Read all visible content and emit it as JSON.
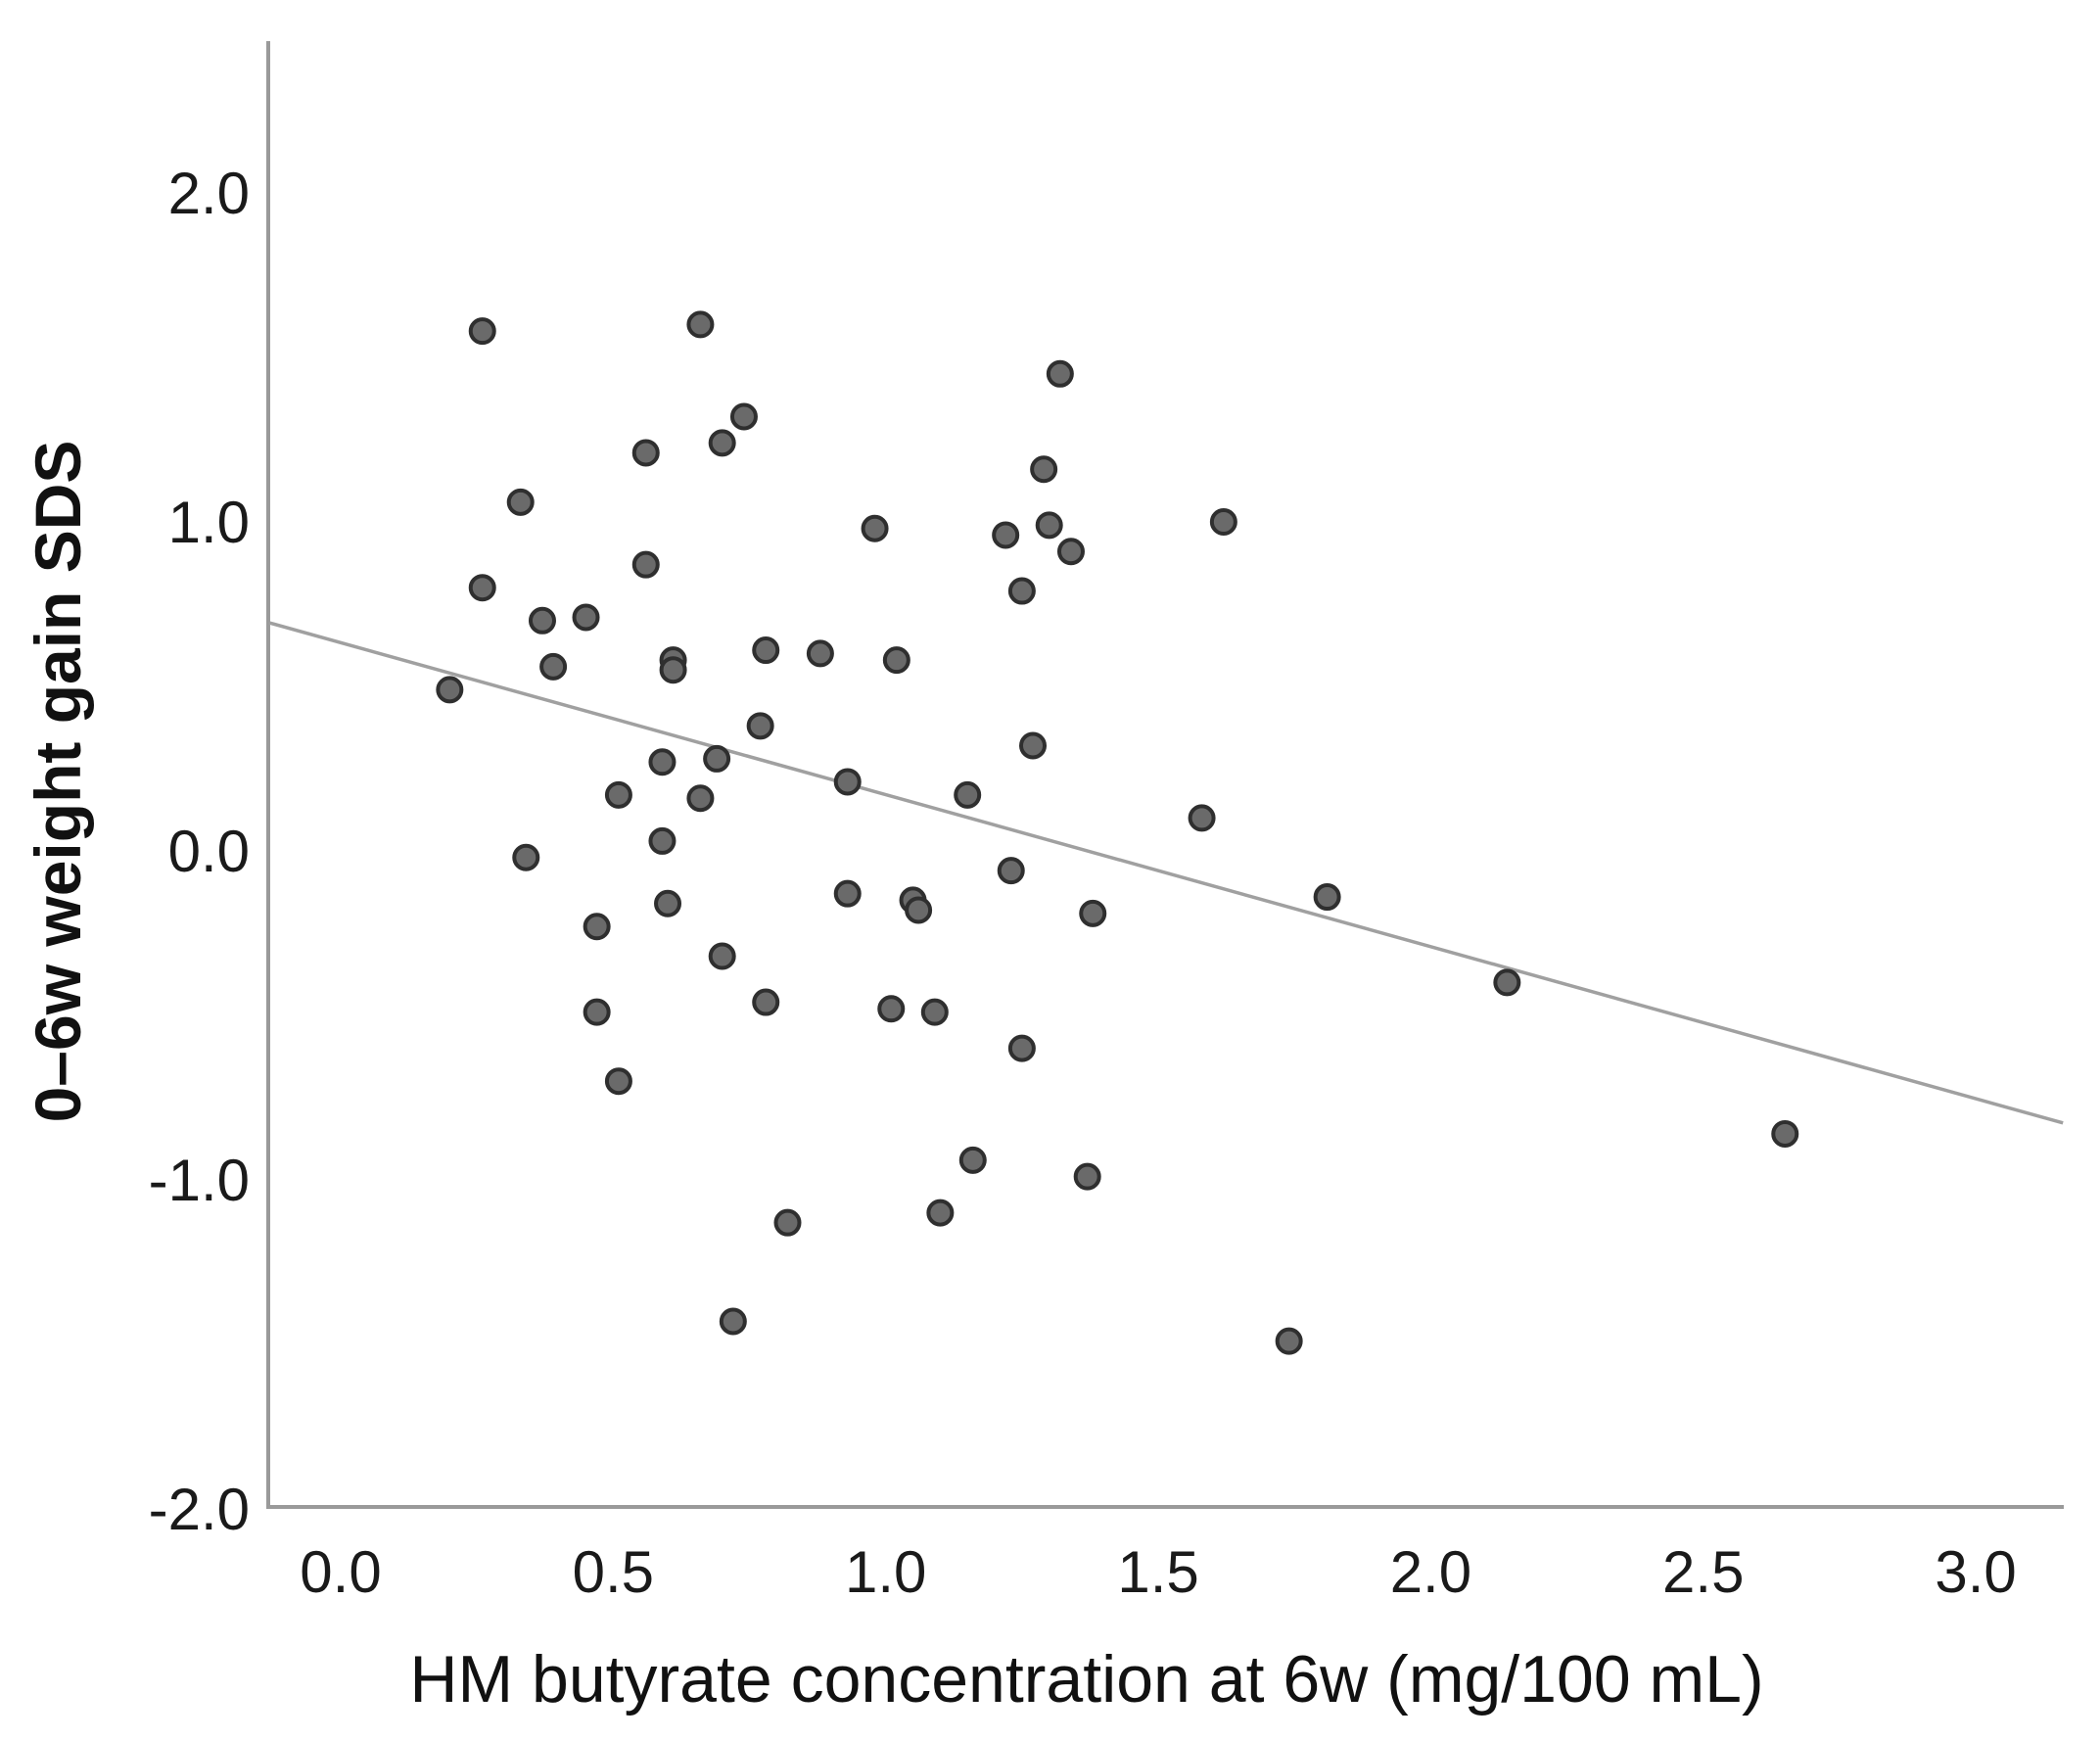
{
  "chart_data": {
    "type": "scatter",
    "title": "",
    "xlabel": "HM butyrate concentration at 6w (mg/100 mL)",
    "ylabel": "0–6w weight gain SDS",
    "xlim": [
      -0.13,
      3.16
    ],
    "ylim": [
      -2.0,
      2.46
    ],
    "x_ticks": [
      "0.0",
      "0.5",
      "1.0",
      "1.5",
      "2.0",
      "2.5",
      "3.0"
    ],
    "x_tick_values": [
      0.0,
      0.5,
      1.0,
      1.5,
      2.0,
      2.5,
      3.0
    ],
    "y_ticks": [
      "2.0",
      "1.0",
      "0.0",
      "-1.0",
      "-2.0"
    ],
    "y_tick_values": [
      2.0,
      1.0,
      0.0,
      -1.0,
      -2.0
    ],
    "grid": false,
    "legend": null,
    "marker_color": "#6a6a6a",
    "marker_edge_color": "#2f2f2f",
    "line_color": "#a0a0a0",
    "fit_line": {
      "type": "linear",
      "intercept": 0.633,
      "slope": -0.462,
      "x_range": [
        -0.13,
        3.16
      ]
    },
    "points": [
      {
        "x": 0.2,
        "y": 0.49
      },
      {
        "x": 0.26,
        "y": 1.58
      },
      {
        "x": 0.26,
        "y": 0.8
      },
      {
        "x": 0.33,
        "y": 1.06
      },
      {
        "x": 0.34,
        "y": -0.02
      },
      {
        "x": 0.37,
        "y": 0.7
      },
      {
        "x": 0.39,
        "y": 0.56
      },
      {
        "x": 0.45,
        "y": 0.71
      },
      {
        "x": 0.47,
        "y": -0.23
      },
      {
        "x": 0.47,
        "y": -0.49
      },
      {
        "x": 0.51,
        "y": -0.7
      },
      {
        "x": 0.51,
        "y": 0.17
      },
      {
        "x": 0.56,
        "y": 0.87
      },
      {
        "x": 0.56,
        "y": 1.21
      },
      {
        "x": 0.59,
        "y": 0.27
      },
      {
        "x": 0.59,
        "y": 0.03
      },
      {
        "x": 0.6,
        "y": -0.16
      },
      {
        "x": 0.61,
        "y": 0.58
      },
      {
        "x": 0.61,
        "y": 0.55
      },
      {
        "x": 0.66,
        "y": 0.16
      },
      {
        "x": 0.66,
        "y": 1.6
      },
      {
        "x": 0.69,
        "y": 0.28
      },
      {
        "x": 0.7,
        "y": 1.24
      },
      {
        "x": 0.7,
        "y": -0.32
      },
      {
        "x": 0.72,
        "y": -1.43
      },
      {
        "x": 0.74,
        "y": 1.32
      },
      {
        "x": 0.77,
        "y": 0.38
      },
      {
        "x": 0.78,
        "y": 0.61
      },
      {
        "x": 0.78,
        "y": -0.46
      },
      {
        "x": 0.82,
        "y": -1.13
      },
      {
        "x": 0.88,
        "y": 0.6
      },
      {
        "x": 0.93,
        "y": -0.13
      },
      {
        "x": 0.93,
        "y": 0.21
      },
      {
        "x": 0.98,
        "y": 0.98
      },
      {
        "x": 1.01,
        "y": -0.48
      },
      {
        "x": 1.02,
        "y": 0.58
      },
      {
        "x": 1.05,
        "y": -0.15
      },
      {
        "x": 1.06,
        "y": -0.18
      },
      {
        "x": 1.09,
        "y": -0.49
      },
      {
        "x": 1.1,
        "y": -1.1
      },
      {
        "x": 1.15,
        "y": 0.17
      },
      {
        "x": 1.16,
        "y": -0.94
      },
      {
        "x": 1.22,
        "y": 0.96
      },
      {
        "x": 1.23,
        "y": -0.06
      },
      {
        "x": 1.25,
        "y": 0.79
      },
      {
        "x": 1.25,
        "y": -0.6
      },
      {
        "x": 1.27,
        "y": 0.32
      },
      {
        "x": 1.29,
        "y": 1.16
      },
      {
        "x": 1.3,
        "y": 0.99
      },
      {
        "x": 1.32,
        "y": 1.45
      },
      {
        "x": 1.34,
        "y": 0.91
      },
      {
        "x": 1.37,
        "y": -0.99
      },
      {
        "x": 1.38,
        "y": -0.19
      },
      {
        "x": 1.58,
        "y": 0.1
      },
      {
        "x": 1.62,
        "y": 1.0
      },
      {
        "x": 1.74,
        "y": -1.49
      },
      {
        "x": 1.81,
        "y": -0.14
      },
      {
        "x": 2.14,
        "y": -0.4
      },
      {
        "x": 2.65,
        "y": -0.86
      }
    ]
  }
}
